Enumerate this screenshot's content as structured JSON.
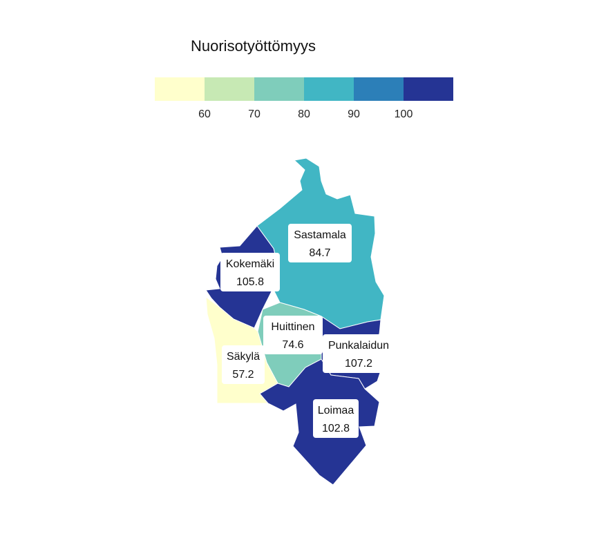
{
  "legend": {
    "title": "Nuorisotyöttömyys",
    "bins": [
      "#ffffcc",
      "#c7e9b4",
      "#7fcdbb",
      "#41b6c4",
      "#2c7fb8",
      "#253494"
    ],
    "ticks": [
      "60",
      "70",
      "80",
      "90",
      "100"
    ]
  },
  "regions": [
    {
      "id": "sastamala",
      "name": "Sastamala",
      "value": "84.7",
      "color": "#41b6c4"
    },
    {
      "id": "kokemaki",
      "name": "Kokemäki",
      "value": "105.8",
      "color": "#253494"
    },
    {
      "id": "huittinen",
      "name": "Huittinen",
      "value": "74.6",
      "color": "#7fcdbb"
    },
    {
      "id": "punkalaidun",
      "name": "Punkalaidun",
      "value": "107.2",
      "color": "#253494"
    },
    {
      "id": "sakyla",
      "name": "Säkylä",
      "value": "57.2",
      "color": "#ffffcc"
    },
    {
      "id": "loimaa",
      "name": "Loimaa",
      "value": "102.8",
      "color": "#253494"
    }
  ]
}
